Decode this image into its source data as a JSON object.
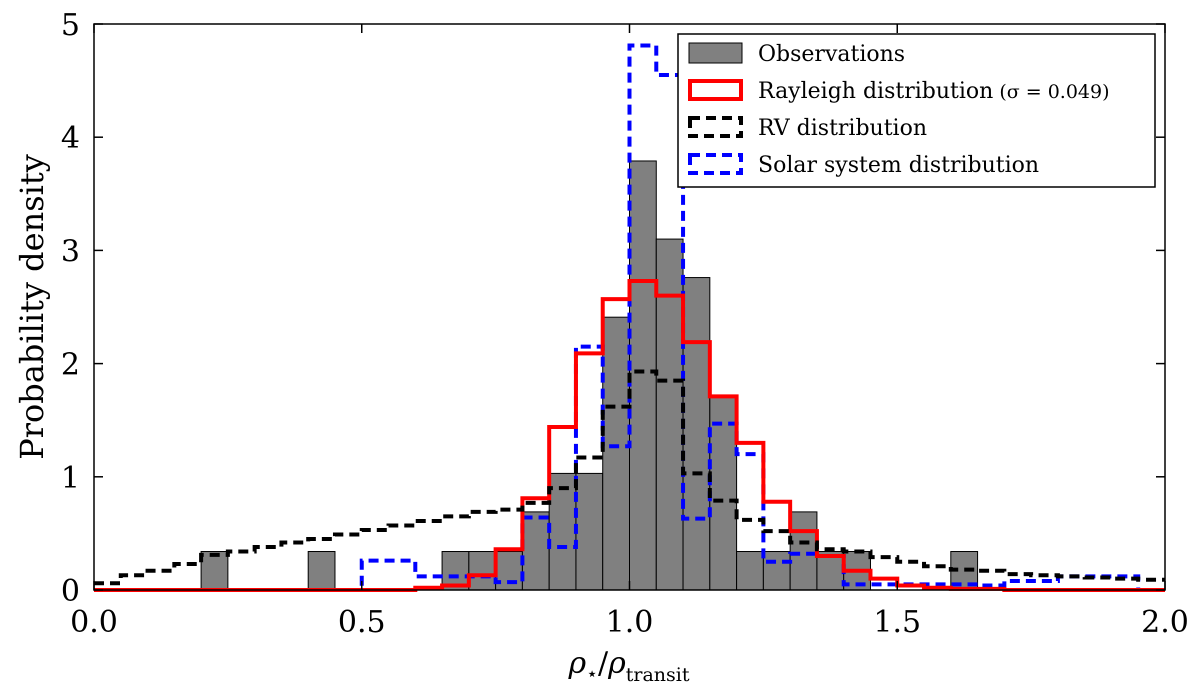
{
  "chart_data": {
    "type": "bar",
    "xlabel": "ρ⋆/ρtransit",
    "ylabel": "Probability density",
    "xlim": [
      0.0,
      2.0
    ],
    "ylim": [
      0,
      5
    ],
    "x_ticks": [
      "0.0",
      "0.5",
      "1.0",
      "1.5",
      "2.0"
    ],
    "y_ticks": [
      "0",
      "1",
      "2",
      "3",
      "4",
      "5"
    ],
    "grid": false,
    "legend_position": "top-right",
    "bin_edges": [
      0.0,
      0.05,
      0.1,
      0.15,
      0.2,
      0.25,
      0.3,
      0.35,
      0.4,
      0.45,
      0.5,
      0.55,
      0.6,
      0.65,
      0.7,
      0.75,
      0.8,
      0.85,
      0.9,
      0.95,
      1.0,
      1.05,
      1.1,
      1.15,
      1.2,
      1.25,
      1.3,
      1.35,
      1.4,
      1.45,
      1.5,
      1.55,
      1.6,
      1.65,
      1.7,
      1.75,
      1.8,
      1.85,
      1.9,
      1.95,
      2.0
    ],
    "series": [
      {
        "name": "Observations",
        "style": "filled",
        "color": "#808080",
        "values": [
          0,
          0,
          0,
          0,
          0.34,
          0,
          0,
          0,
          0.34,
          0,
          0,
          0,
          0,
          0.34,
          0.34,
          0.34,
          0.69,
          1.03,
          1.03,
          2.41,
          3.79,
          3.1,
          2.76,
          1.72,
          0.34,
          0.34,
          0.69,
          0.34,
          0.34,
          0,
          0,
          0,
          0.34,
          0,
          0,
          0,
          0,
          0,
          0,
          0
        ]
      },
      {
        "name": "Rayleigh distribution",
        "name_suffix": "(σ = 0.049)",
        "style": "solid",
        "color": "#ff0000",
        "values": [
          0,
          0,
          0,
          0,
          0,
          0,
          0,
          0,
          0,
          0,
          0,
          0,
          0.02,
          0.04,
          0.13,
          0.36,
          0.81,
          1.44,
          2.09,
          2.57,
          2.73,
          2.6,
          2.19,
          1.71,
          1.3,
          0.78,
          0.52,
          0.3,
          0.17,
          0.1,
          0.04,
          0.02,
          0.01,
          0.01,
          0,
          0,
          0,
          0,
          0,
          0
        ]
      },
      {
        "name": "RV distribution",
        "style": "dashed",
        "color": "#000000",
        "values": [
          0.06,
          0.13,
          0.17,
          0.23,
          0.31,
          0.34,
          0.38,
          0.42,
          0.45,
          0.49,
          0.53,
          0.57,
          0.61,
          0.65,
          0.69,
          0.71,
          0.77,
          0.9,
          1.17,
          1.62,
          1.93,
          1.85,
          1.03,
          0.79,
          0.62,
          0.52,
          0.42,
          0.36,
          0.34,
          0.29,
          0.25,
          0.21,
          0.18,
          0.17,
          0.14,
          0.13,
          0.12,
          0.11,
          0.1,
          0.09
        ]
      },
      {
        "name": "Solar system distribution",
        "style": "dashed",
        "color": "#0000ff",
        "values": [
          0,
          0,
          0,
          0,
          0,
          0,
          0,
          0,
          0,
          0,
          0.26,
          0.26,
          0.12,
          0.12,
          0.12,
          0.07,
          0.64,
          0.38,
          2.15,
          1.27,
          4.81,
          4.55,
          0.63,
          1.47,
          1.2,
          0.25,
          0.32,
          0.3,
          0.05,
          0.05,
          0.05,
          0.05,
          0.05,
          0.04,
          0.08,
          0.08,
          0.12,
          0.12,
          0.12,
          0
        ]
      }
    ]
  }
}
